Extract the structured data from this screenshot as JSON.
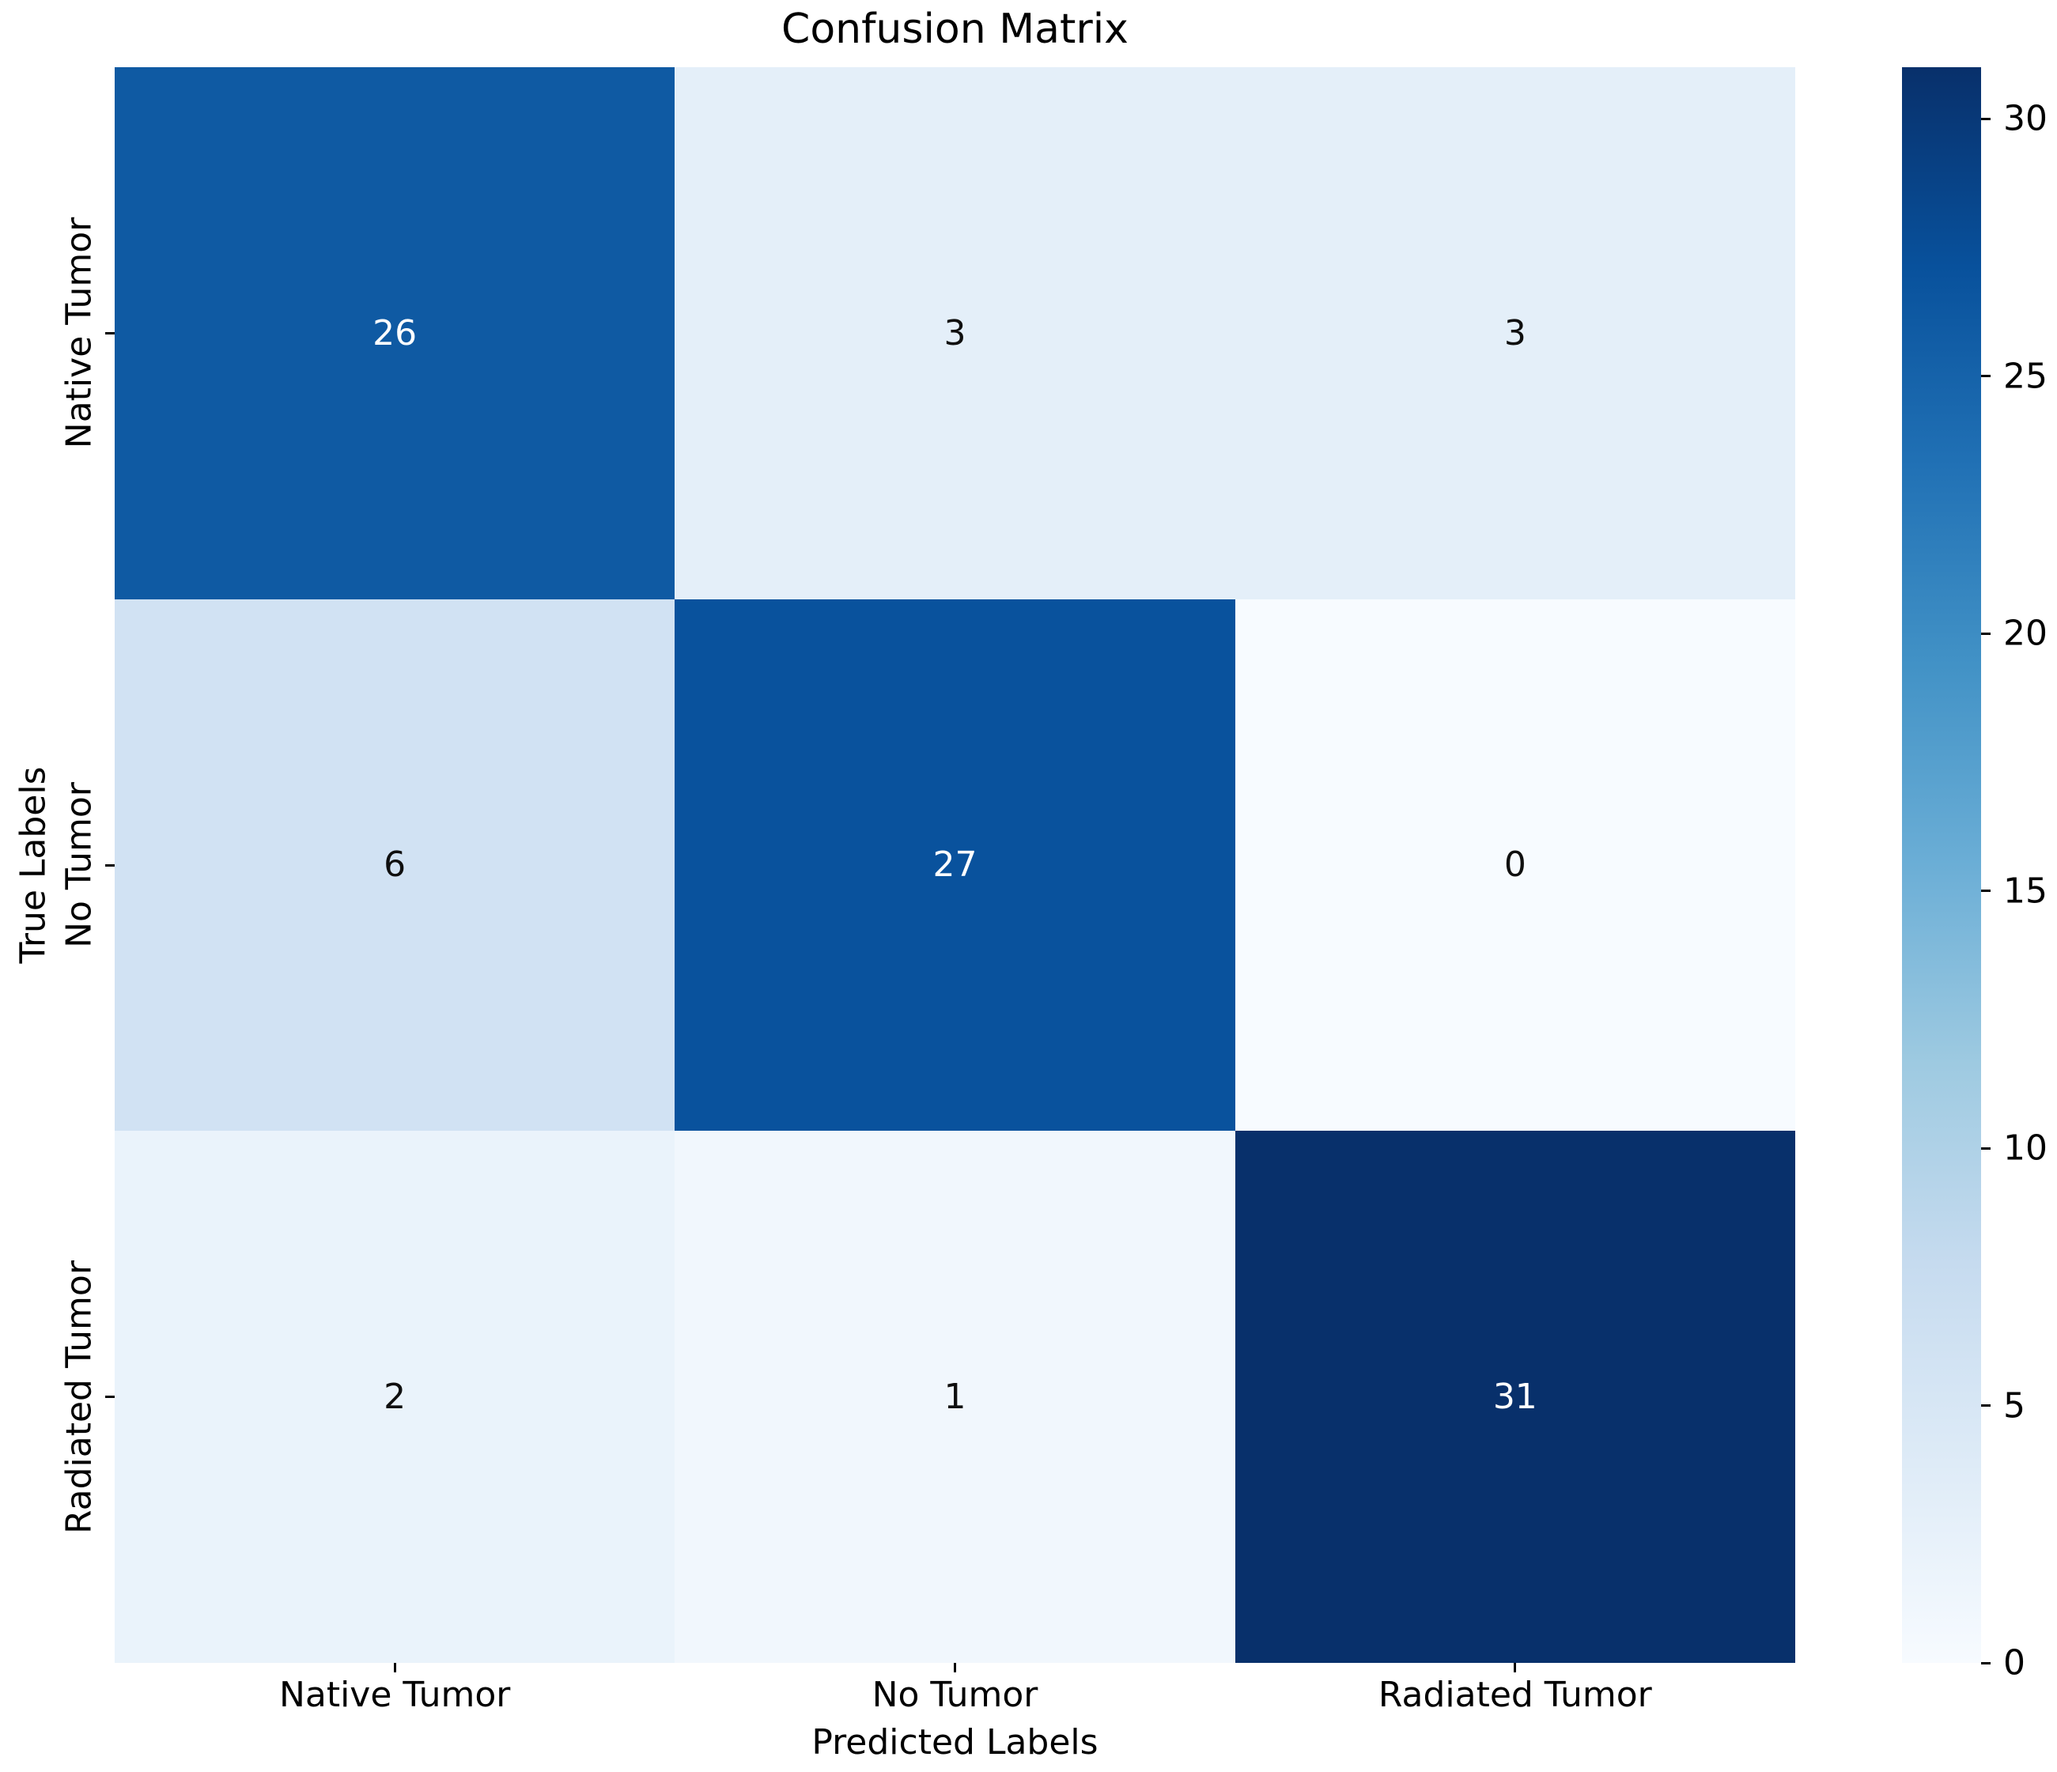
{
  "chart_data": {
    "type": "heatmap",
    "title": "Confusion Matrix",
    "xlabel": "Predicted Labels",
    "ylabel": "True Labels",
    "x_categories": [
      "Native Tumor",
      "No Tumor",
      "Radiated Tumor"
    ],
    "y_categories": [
      "Native Tumor",
      "No Tumor",
      "Radiated Tumor"
    ],
    "matrix": [
      [
        26,
        3,
        3
      ],
      [
        6,
        27,
        0
      ],
      [
        2,
        1,
        31
      ]
    ],
    "vmin": 0,
    "vmax": 31,
    "colormap": "Blues",
    "colorbar_ticks": [
      0,
      5,
      10,
      15,
      20,
      25,
      30
    ],
    "colorbar_position": "right",
    "grid": false,
    "colors": {
      "cmap_low": "#F7FBFF",
      "cmap_high": "#08306B",
      "annotation_on_dark": "#FFFFFF",
      "annotation_on_light": "#0F0F0F",
      "background": "#FFFFFF",
      "text": "#000000"
    }
  }
}
